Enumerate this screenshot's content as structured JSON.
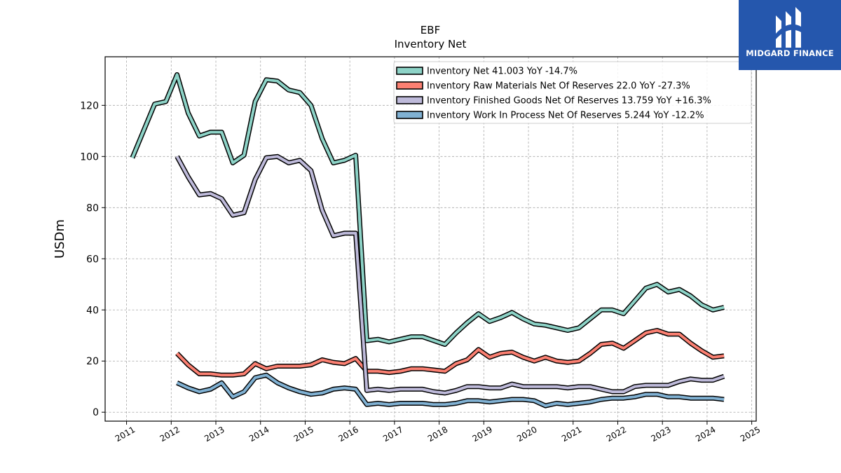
{
  "chart_data": {
    "type": "line",
    "title": "EBF",
    "subtitle": "Inventory Net",
    "xlabel": "",
    "ylabel": "USDm",
    "xlim": [
      2010.52,
      2025.1
    ],
    "ylim": [
      -3.5,
      139
    ],
    "yticks": [
      0,
      20,
      40,
      60,
      80,
      100,
      120
    ],
    "xticks": [
      "2011",
      "2012",
      "2013",
      "2014",
      "2015",
      "2016",
      "2017",
      "2018",
      "2019",
      "2020",
      "2021",
      "2022",
      "2023",
      "2024",
      "2025"
    ],
    "grid": true,
    "legend_position": "top-right",
    "series": [
      {
        "name": "Inventory Net  41.003 YoY -14.7%",
        "color": "#8dd3c7",
        "x": [
          2011.13,
          2011.38,
          2011.63,
          2011.88,
          2012.13,
          2012.38,
          2012.63,
          2012.88,
          2013.13,
          2013.38,
          2013.63,
          2013.88,
          2014.13,
          2014.38,
          2014.63,
          2014.88,
          2015.13,
          2015.38,
          2015.63,
          2015.88,
          2016.13,
          2016.38,
          2016.63,
          2016.88,
          2017.13,
          2017.38,
          2017.63,
          2017.88,
          2018.13,
          2018.38,
          2018.63,
          2018.88,
          2019.13,
          2019.38,
          2019.63,
          2019.88,
          2020.13,
          2020.38,
          2020.63,
          2020.88,
          2021.13,
          2021.38,
          2021.63,
          2021.88,
          2022.13,
          2022.38,
          2022.63,
          2022.88,
          2023.13,
          2023.38,
          2023.63,
          2023.88,
          2024.13,
          2024.38
        ],
        "values": [
          99.5,
          110,
          120.5,
          121.5,
          132,
          117,
          108,
          109.5,
          109.5,
          97.5,
          100.5,
          121.5,
          130,
          129.5,
          126,
          125,
          120,
          107,
          97.5,
          98.5,
          100.5,
          28,
          28.5,
          27.5,
          28.5,
          29.5,
          29.5,
          28,
          26.5,
          31,
          35,
          38.5,
          35.5,
          37,
          39,
          36.5,
          34.5,
          34,
          33,
          32,
          33,
          36.5,
          40,
          40,
          38.5,
          43.5,
          48.5,
          50,
          47,
          48,
          45.5,
          42,
          40,
          41
        ]
      },
      {
        "name": "Inventory Raw Materials Net Of Reserves  22.0 YoY -27.3%",
        "color": "#fb8072",
        "x": [
          2012.13,
          2012.38,
          2012.63,
          2012.88,
          2013.13,
          2013.38,
          2013.63,
          2013.88,
          2014.13,
          2014.38,
          2014.63,
          2014.88,
          2015.13,
          2015.38,
          2015.63,
          2015.88,
          2016.13,
          2016.38,
          2016.63,
          2016.88,
          2017.13,
          2017.38,
          2017.63,
          2017.88,
          2018.13,
          2018.38,
          2018.63,
          2018.88,
          2019.13,
          2019.38,
          2019.63,
          2019.88,
          2020.13,
          2020.38,
          2020.63,
          2020.88,
          2021.13,
          2021.38,
          2021.63,
          2021.88,
          2022.13,
          2022.38,
          2022.63,
          2022.88,
          2023.13,
          2023.38,
          2023.63,
          2023.88,
          2024.13,
          2024.38
        ],
        "values": [
          23,
          18.5,
          15,
          15,
          14.5,
          14.5,
          15,
          19,
          17,
          18,
          18,
          18,
          18.5,
          20.5,
          19.5,
          19,
          21,
          16,
          16,
          15.5,
          16,
          17,
          17,
          16.5,
          16,
          19,
          20.5,
          24.5,
          21.5,
          23,
          23.5,
          21.5,
          20,
          21.5,
          20,
          19.5,
          20,
          23,
          26.5,
          27,
          25,
          28,
          31,
          32,
          30.5,
          30.5,
          27,
          24,
          21.5,
          22
        ]
      },
      {
        "name": "Inventory Finished Goods Net Of Reserves  13.759 YoY +16.3%",
        "color": "#bebada",
        "x": [
          2012.13,
          2012.38,
          2012.63,
          2012.88,
          2013.13,
          2013.38,
          2013.63,
          2013.88,
          2014.13,
          2014.38,
          2014.63,
          2014.88,
          2015.13,
          2015.38,
          2015.63,
          2015.88,
          2016.13,
          2016.38,
          2016.63,
          2016.88,
          2017.13,
          2017.38,
          2017.63,
          2017.88,
          2018.13,
          2018.38,
          2018.63,
          2018.88,
          2019.13,
          2019.38,
          2019.63,
          2019.88,
          2020.13,
          2020.38,
          2020.63,
          2020.88,
          2021.13,
          2021.38,
          2021.63,
          2021.88,
          2022.13,
          2022.38,
          2022.63,
          2022.88,
          2023.13,
          2023.38,
          2023.63,
          2023.88,
          2024.13,
          2024.38
        ],
        "values": [
          100,
          92,
          85,
          85.5,
          83.5,
          77,
          78,
          91,
          99.5,
          100,
          97.5,
          98.5,
          94.5,
          79,
          69,
          70,
          70,
          8.5,
          9,
          8.5,
          9,
          9,
          9,
          8,
          7.5,
          8.5,
          10,
          10,
          9.5,
          9.5,
          11,
          10,
          10,
          10,
          10,
          9.5,
          10,
          10,
          9,
          8,
          8,
          10,
          10.5,
          10.5,
          10.5,
          12,
          13,
          12.5,
          12.5,
          14
        ]
      },
      {
        "name": "Inventory Work In Process Net Of Reserves  5.244 YoY -12.2%",
        "color": "#80b1d3",
        "x": [
          2012.13,
          2012.38,
          2012.63,
          2012.88,
          2013.13,
          2013.38,
          2013.63,
          2013.88,
          2014.13,
          2014.38,
          2014.63,
          2014.88,
          2015.13,
          2015.38,
          2015.63,
          2015.88,
          2016.13,
          2016.38,
          2016.63,
          2016.88,
          2017.13,
          2017.38,
          2017.63,
          2017.88,
          2018.13,
          2018.38,
          2018.63,
          2018.88,
          2019.13,
          2019.38,
          2019.63,
          2019.88,
          2020.13,
          2020.38,
          2020.63,
          2020.88,
          2021.13,
          2021.38,
          2021.63,
          2021.88,
          2022.13,
          2022.38,
          2022.63,
          2022.88,
          2023.13,
          2023.38,
          2023.63,
          2023.88,
          2024.13,
          2024.38
        ],
        "values": [
          11.5,
          9.5,
          8,
          9,
          11.5,
          6,
          8,
          13.5,
          14.5,
          11.5,
          9.5,
          8,
          7,
          7.5,
          9,
          9.5,
          9,
          3,
          3.5,
          3,
          3.5,
          3.5,
          3.5,
          3,
          3,
          3.5,
          4.5,
          4.5,
          4,
          4.5,
          5,
          5,
          4.5,
          2.5,
          3.5,
          3,
          3.5,
          4,
          5,
          5.5,
          5.5,
          6,
          7,
          7,
          6,
          6,
          5.5,
          5.5,
          5.5,
          5
        ]
      }
    ]
  },
  "logo": {
    "text": "MIDGARD FINANCE"
  }
}
